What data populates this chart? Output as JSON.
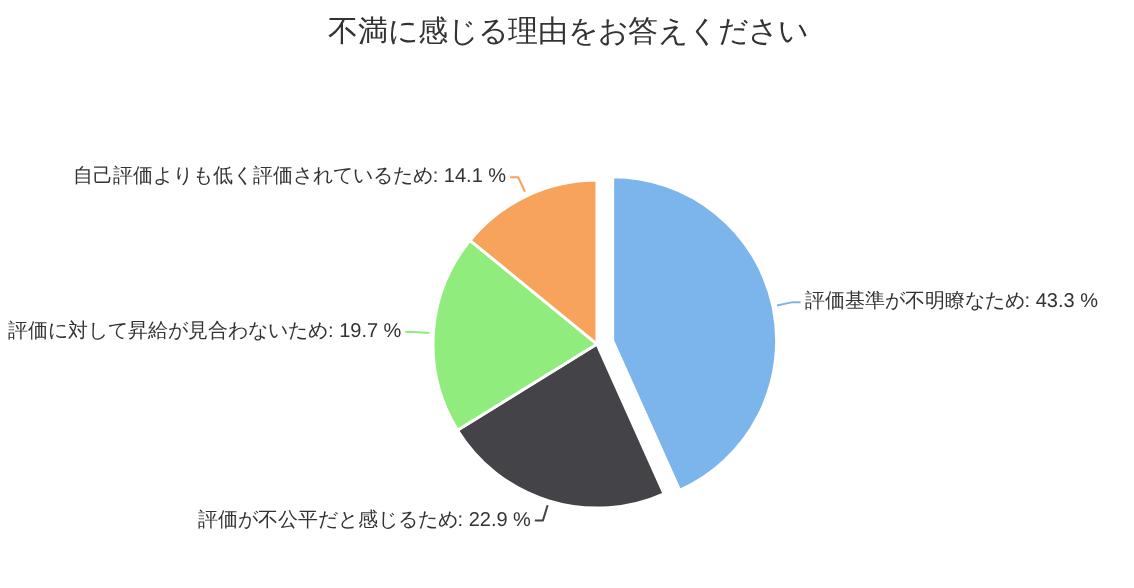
{
  "chart_data": {
    "type": "pie",
    "title": "不満に感じる理由をお答えください",
    "categories": [
      "評価基準が不明瞭なため",
      "評価が不公平だと感じるため",
      "評価に対して昇給が見合わないため",
      "自己評価よりも低く評価されているため"
    ],
    "values": [
      43.3,
      22.9,
      19.7,
      14.1
    ],
    "value_labels": [
      "43.3 %",
      "22.9 %",
      "19.7 %",
      "14.1 %"
    ],
    "colors": [
      "#7cb5ec",
      "#434348",
      "#90ed7d",
      "#f7a35c"
    ]
  }
}
